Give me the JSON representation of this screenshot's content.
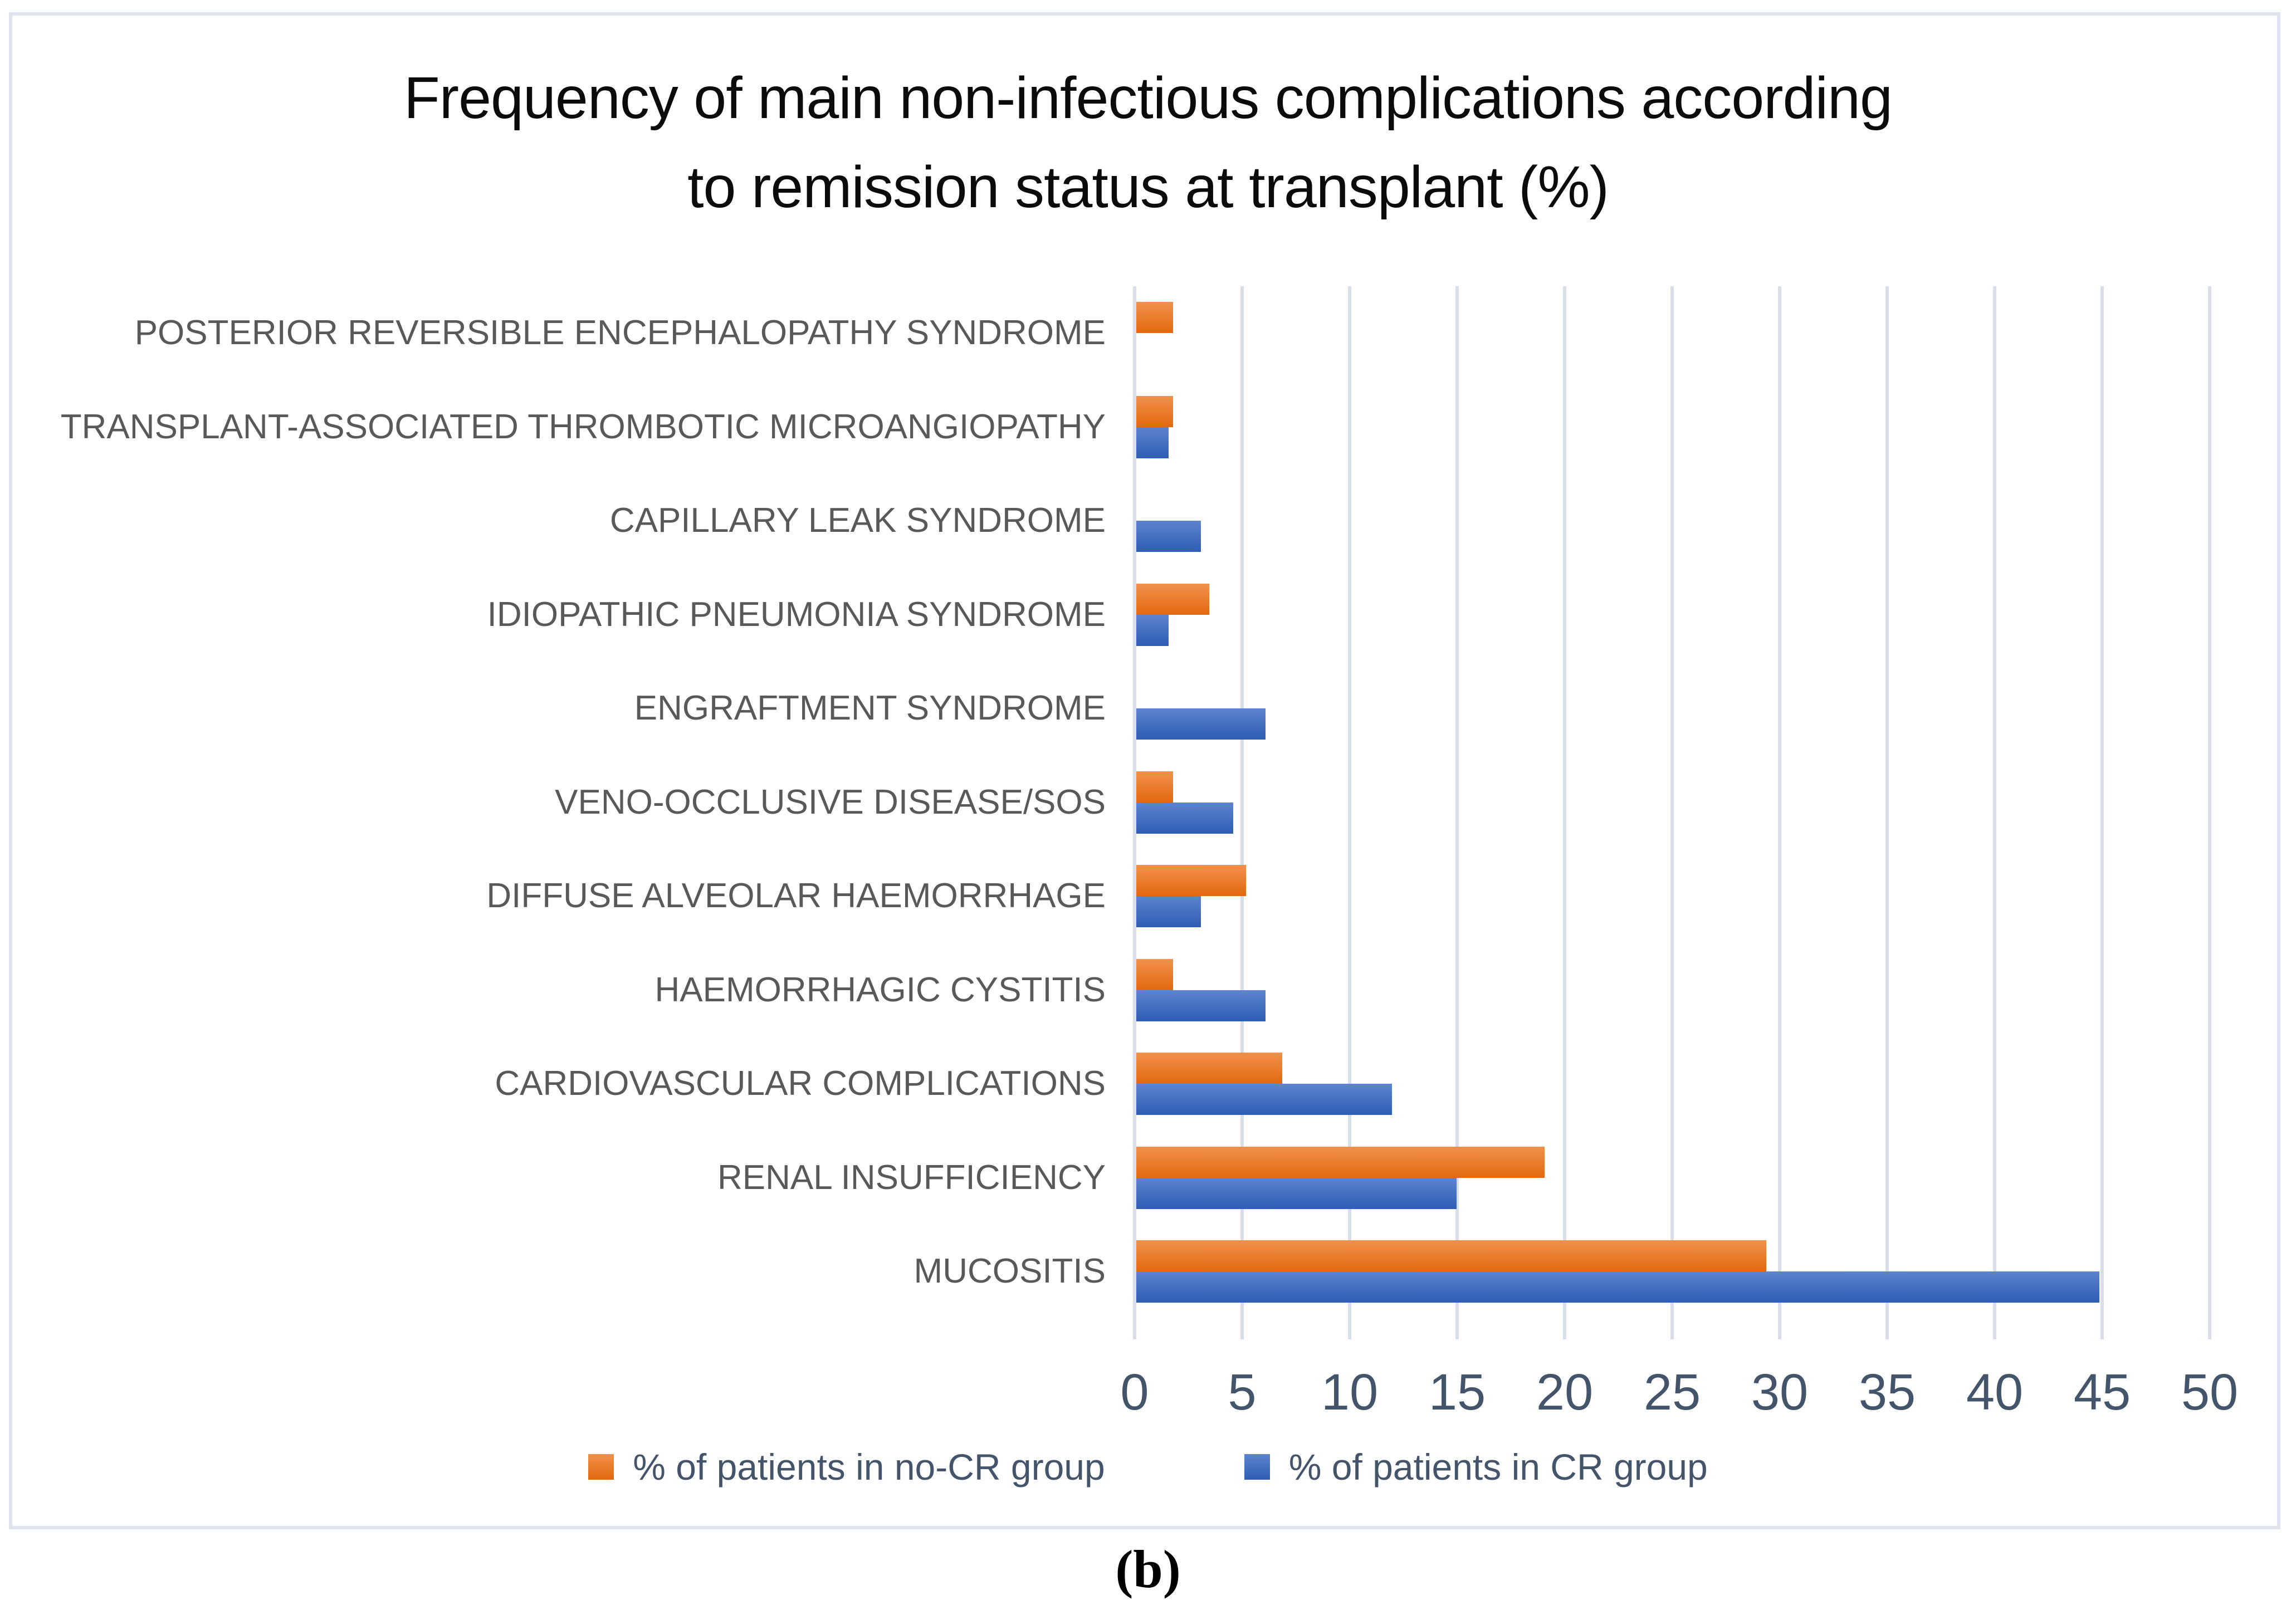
{
  "figure": {
    "panel_label": "(b)"
  },
  "chart_data": {
    "type": "bar",
    "orientation": "horizontal",
    "title": "Frequency of main non-infectious complications according to remission status at transplant (%)",
    "title_lines": [
      "Frequency of main non-infectious complications according",
      "to remission status at transplant (%)"
    ],
    "categories": [
      "POSTERIOR REVERSIBLE ENCEPHALOPATHY SYNDROME",
      "TRANSPLANT-ASSOCIATED THROMBOTIC MICROANGIOPATHY",
      "CAPILLARY LEAK SYNDROME",
      "IDIOPATHIC PNEUMONIA SYNDROME",
      "ENGRAFTMENT SYNDROME",
      "VENO-OCCLUSIVE DISEASE/SOS",
      "DIFFUSE ALVEOLAR HAEMORRHAGE",
      "HAEMORRHAGIC CYSTITIS",
      "CARDIOVASCULAR COMPLICATIONS",
      "RENAL INSUFFICIENCY",
      "MUCOSITIS"
    ],
    "series": [
      {
        "name": "% of patients in no-CR group",
        "color_top": "#F0914C",
        "color_bottom": "#E2680F",
        "values": [
          1.7,
          1.7,
          0,
          3.4,
          0,
          1.7,
          5.1,
          1.7,
          6.8,
          19.0,
          29.3
        ]
      },
      {
        "name": "% of patients in CR group",
        "color_top": "#5E84CE",
        "color_bottom": "#2E5DB4",
        "values": [
          0,
          1.5,
          3.0,
          1.5,
          6.0,
          4.5,
          3.0,
          6.0,
          11.9,
          14.9,
          44.8
        ]
      }
    ],
    "x_axis": {
      "min": 0,
      "max": 50,
      "tick_step": 5,
      "tick_labels": [
        "0",
        "5",
        "10",
        "15",
        "20",
        "25",
        "30",
        "35",
        "40",
        "45",
        "50"
      ]
    },
    "grid": true,
    "legend_position": "bottom",
    "colors": {
      "gridline": "#d9dee8",
      "frame_border": "#e0e4ee",
      "tick_text": "#44546a",
      "category_text": "#595959",
      "title_text": "#0b0b0b"
    }
  }
}
